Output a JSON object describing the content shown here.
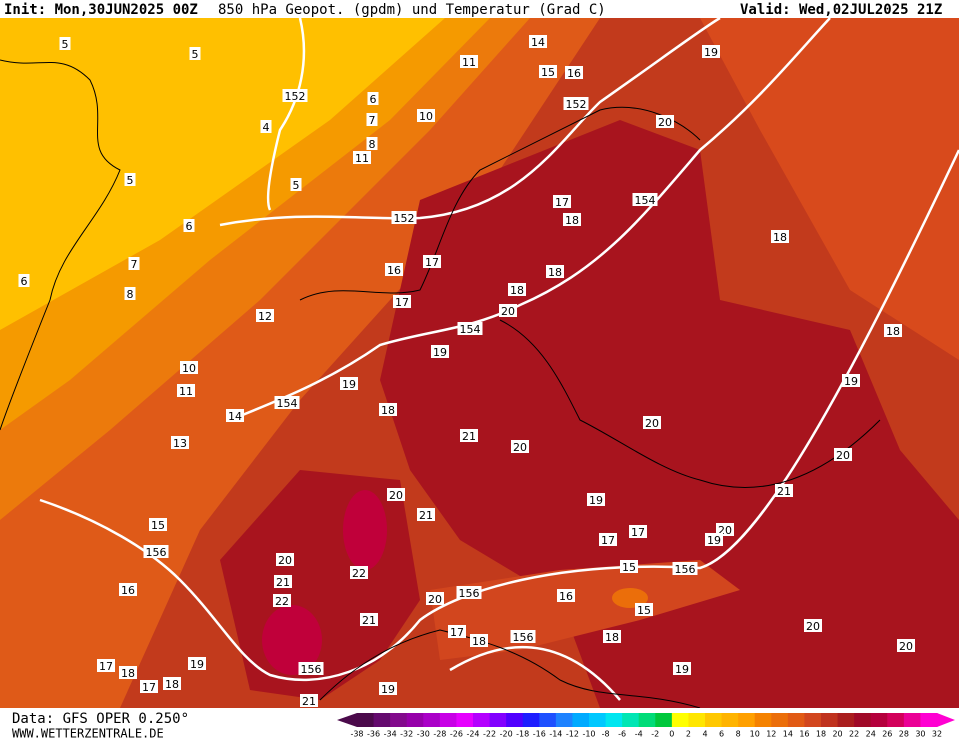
{
  "header": {
    "init": "Init: Mon,30JUN2025 00Z",
    "title": "850 hPa Geopot. (gpdm) und Temperatur (Grad C)",
    "valid": "Valid: Wed,02JUL2025 21Z"
  },
  "footer": {
    "data": "Data: GFS OPER 0.250°",
    "site": "WWW.WETTERZENTRALE.DE"
  },
  "colorbar": {
    "levels": [
      -38,
      -36,
      -34,
      -32,
      -30,
      -28,
      -26,
      -24,
      -22,
      -20,
      -18,
      -16,
      -14,
      -12,
      -10,
      -8,
      -6,
      -4,
      -2,
      0,
      2,
      4,
      6,
      8,
      10,
      12,
      14,
      16,
      18,
      20,
      22,
      24,
      26,
      28,
      30,
      32
    ],
    "colors": [
      "#4b0a4b",
      "#640a6e",
      "#820a8c",
      "#9600aa",
      "#aa00c8",
      "#c800e6",
      "#e600ff",
      "#b400ff",
      "#8200ff",
      "#5000ff",
      "#1e1eff",
      "#1e50ff",
      "#1e82ff",
      "#00aaff",
      "#00c8ff",
      "#00e6f0",
      "#00e6b4",
      "#00dc78",
      "#00c83c",
      "#ffff00",
      "#ffe600",
      "#ffc800",
      "#ffb400",
      "#ffa000",
      "#f58200",
      "#eb6e0a",
      "#e15a14",
      "#d2461e",
      "#c0321e",
      "#aa1e1e",
      "#a00a28",
      "#b4003c",
      "#d2005a",
      "#eb0096",
      "#ff00d2"
    ]
  },
  "contour_labels": [
    5,
    5,
    152,
    6,
    4,
    7,
    10,
    11,
    14,
    15,
    16,
    19,
    152,
    20,
    8,
    11,
    5,
    5,
    6,
    7,
    8,
    6,
    152,
    154,
    17,
    18,
    16,
    17,
    18,
    18,
    17,
    12,
    20,
    154,
    18,
    19,
    18,
    19,
    10,
    11,
    154,
    18,
    19,
    14,
    20,
    21,
    20,
    13,
    20,
    20,
    21,
    19,
    21,
    15,
    17,
    20,
    17,
    19,
    156,
    20,
    15,
    156,
    22,
    21,
    16,
    22,
    20,
    156,
    16,
    15,
    21,
    17,
    18,
    156,
    18,
    20,
    20,
    17,
    19,
    156,
    18,
    17,
    18,
    19,
    19,
    21
  ]
}
